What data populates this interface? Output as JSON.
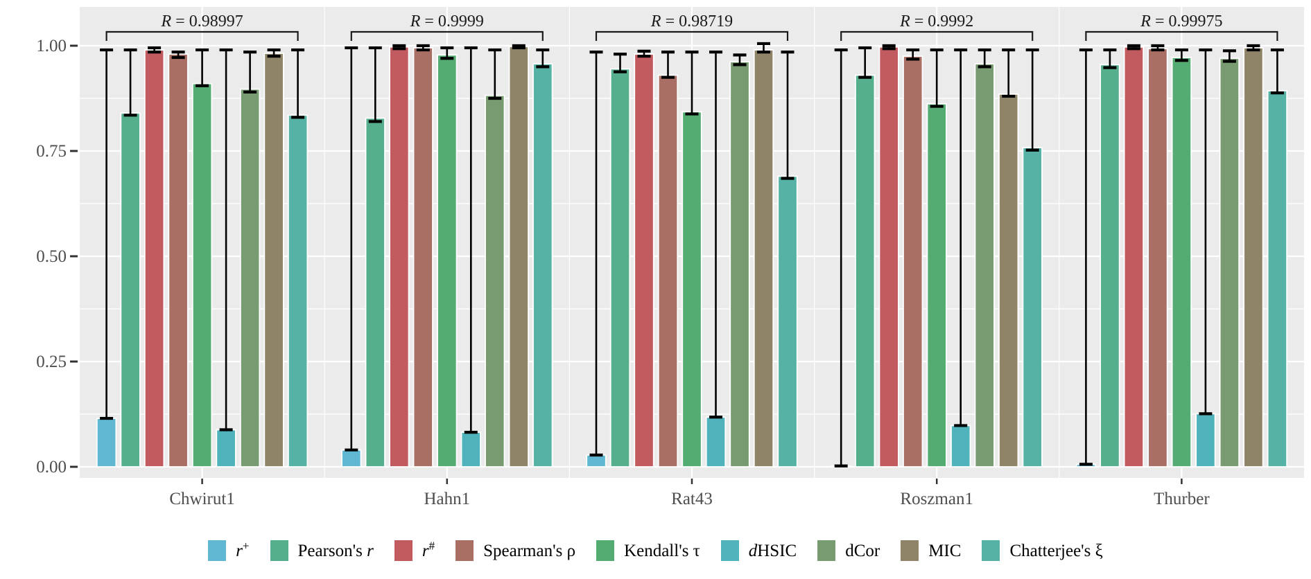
{
  "figure": {
    "background": "#ffffff",
    "panel_background": "#EBEBEB",
    "gridline_color": "#FFFFFF",
    "axis_text_color": "#4D4D4D",
    "tick_mark_color": "#333333",
    "errorbar_color": "#000000",
    "bracket_color": "#1a1a1a",
    "bar_outline_color": "#FFFFFF"
  },
  "chart_data": {
    "type": "bar",
    "title": "",
    "xlabel": "",
    "ylabel": "",
    "ylim": [
      0,
      1
    ],
    "grid": true,
    "legend_position": "bottom",
    "categories": [
      "Chwirut1",
      "Hahn1",
      "Rat43",
      "Roszman1",
      "Thurber"
    ],
    "y_axis": {
      "tick_labels": [
        "0.00",
        "0.25",
        "0.50",
        "0.75",
        "1.00"
      ],
      "tick_values": [
        0,
        0.25,
        0.5,
        0.75,
        1.0
      ]
    },
    "annotation": {
      "prefix_italic": "R",
      "separator": " = ",
      "values": [
        "0.98997",
        "0.9999",
        "0.98719",
        "0.9992",
        "0.99975"
      ]
    },
    "series": [
      {
        "name": "r+",
        "label_parts": [
          [
            "i",
            "r"
          ],
          [
            "sup",
            "+"
          ]
        ],
        "color": "#5FB7D2",
        "values": [
          0.115,
          0.04,
          0.028,
          0.002,
          0.006
        ],
        "err_low": [
          0.115,
          0.04,
          0.028,
          0.002,
          0.006
        ],
        "err_high": [
          0.99,
          0.995,
          0.985,
          0.99,
          0.99
        ]
      },
      {
        "name": "Pearson's r",
        "label_parts": [
          [
            "n",
            "Pearson's "
          ],
          [
            "i",
            "r"
          ]
        ],
        "color": "#55AE8C",
        "values": [
          0.84,
          0.828,
          0.945,
          0.93,
          0.955
        ],
        "err_low": [
          0.835,
          0.82,
          0.938,
          0.925,
          0.948
        ],
        "err_high": [
          0.99,
          0.995,
          0.98,
          0.995,
          0.99
        ]
      },
      {
        "name": "r#",
        "label_parts": [
          [
            "i",
            "r"
          ],
          [
            "sup",
            "#"
          ]
        ],
        "color": "#C25B60",
        "values": [
          0.99,
          0.997,
          0.98,
          0.997,
          0.997
        ],
        "err_low": [
          0.985,
          0.993,
          0.975,
          0.993,
          0.993
        ],
        "err_high": [
          0.995,
          1.0,
          0.987,
          1.0,
          1.0
        ]
      },
      {
        "name": "Spearman's ρ",
        "label_parts": [
          [
            "n",
            "Spearman's ρ"
          ]
        ],
        "color": "#A96F64",
        "values": [
          0.98,
          0.995,
          0.93,
          0.975,
          0.993
        ],
        "err_low": [
          0.972,
          0.99,
          0.925,
          0.968,
          0.99
        ],
        "err_high": [
          0.985,
          1.0,
          0.985,
          0.99,
          1.0
        ]
      },
      {
        "name": "Kendall's τ",
        "label_parts": [
          [
            "n",
            "Kendall's τ"
          ]
        ],
        "color": "#55AC72",
        "values": [
          0.91,
          0.978,
          0.843,
          0.862,
          0.972
        ],
        "err_low": [
          0.905,
          0.97,
          0.838,
          0.856,
          0.965
        ],
        "err_high": [
          0.99,
          0.995,
          0.985,
          0.99,
          0.99
        ]
      },
      {
        "name": "dHSIC",
        "label_parts": [
          [
            "i",
            "d"
          ],
          [
            "n",
            "HSIC"
          ]
        ],
        "color": "#50B3BC",
        "values": [
          0.088,
          0.082,
          0.118,
          0.098,
          0.126
        ],
        "err_low": [
          0.088,
          0.082,
          0.118,
          0.098,
          0.126
        ],
        "err_high": [
          0.99,
          0.995,
          0.985,
          0.99,
          0.99
        ]
      },
      {
        "name": "dCor",
        "label_parts": [
          [
            "n",
            "dCor"
          ]
        ],
        "color": "#789B72",
        "values": [
          0.897,
          0.882,
          0.962,
          0.957,
          0.97
        ],
        "err_low": [
          0.89,
          0.875,
          0.955,
          0.95,
          0.963
        ],
        "err_high": [
          0.985,
          0.99,
          0.978,
          0.99,
          0.988
        ]
      },
      {
        "name": "MIC",
        "label_parts": [
          [
            "n",
            "MIC"
          ]
        ],
        "color": "#8F8468",
        "values": [
          0.982,
          0.998,
          0.99,
          0.885,
          0.995
        ],
        "err_low": [
          0.975,
          0.995,
          0.985,
          0.88,
          0.99
        ],
        "err_high": [
          0.99,
          1.0,
          1.005,
          0.99,
          1.0
        ]
      },
      {
        "name": "Chatterjee's ξ",
        "label_parts": [
          [
            "n",
            "Chatterjee's ξ"
          ]
        ],
        "color": "#55B2A4",
        "values": [
          0.835,
          0.957,
          0.69,
          0.758,
          0.893
        ],
        "err_low": [
          0.83,
          0.95,
          0.685,
          0.752,
          0.888
        ],
        "err_high": [
          0.99,
          0.99,
          0.985,
          0.99,
          0.99
        ]
      }
    ]
  }
}
